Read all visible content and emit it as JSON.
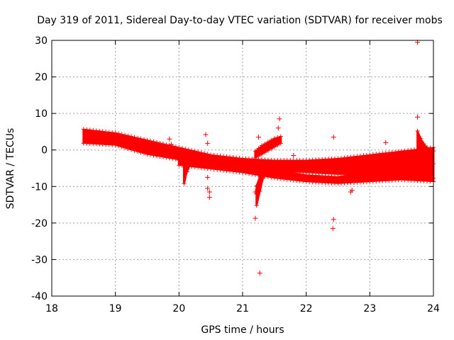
{
  "chart_data": {
    "type": "scatter",
    "title": "Day 319 of 2011, Sidereal Day-to-day VTEC variation (SDTVAR) for receiver mobs",
    "xlabel": "GPS time / hours",
    "ylabel": "SDTVAR / TECUs",
    "xlim": [
      18,
      24
    ],
    "ylim": [
      -40,
      30
    ],
    "xticks": [
      18,
      19,
      20,
      21,
      22,
      23,
      24
    ],
    "yticks": [
      -40,
      -30,
      -20,
      -10,
      0,
      10,
      20,
      30
    ],
    "xtick_labels": [
      "18",
      "19",
      "20",
      "21",
      "22",
      "23",
      "24"
    ],
    "ytick_labels": [
      "-40",
      "-30",
      "-20",
      "-10",
      "0",
      "10",
      "20",
      "30"
    ],
    "grid": true,
    "marker": "+",
    "color": "#ff0000",
    "bands": [
      {
        "name": "upper-track",
        "x": [
          18.5,
          19.0,
          19.5,
          20.0,
          20.5,
          21.0,
          21.5,
          22.0,
          22.5,
          23.0,
          23.5,
          24.0
        ],
        "y_top": [
          5.5,
          4.5,
          2.5,
          0.5,
          -1.5,
          -2.5,
          -3.0,
          -3.0,
          -2.5,
          -1.5,
          -0.5,
          0.5
        ],
        "y_bottom": [
          2.0,
          1.5,
          -1.0,
          -2.5,
          -4.0,
          -5.0,
          -5.5,
          -6.0,
          -6.5,
          -6.5,
          -7.0,
          -7.5
        ]
      },
      {
        "name": "lower-track",
        "x": [
          20.0,
          20.5,
          21.0,
          21.5,
          22.0,
          22.5,
          23.0,
          23.5,
          24.0
        ],
        "y_top": [
          -3.0,
          -3.5,
          -4.0,
          -5.5,
          -7.0,
          -7.5,
          -6.0,
          -5.0,
          -4.0
        ],
        "y_bottom": [
          -4.0,
          -5.0,
          -6.0,
          -7.5,
          -8.5,
          -9.0,
          -8.5,
          -8.0,
          -8.5
        ]
      },
      {
        "name": "rising-arc",
        "x": [
          21.2,
          21.3,
          21.4,
          21.5,
          21.6
        ],
        "y_top": [
          -0.5,
          1.0,
          2.0,
          3.0,
          3.5
        ],
        "y_bottom": [
          -2.0,
          -1.0,
          0.0,
          1.0,
          2.0
        ]
      },
      {
        "name": "descending-arc",
        "x": [
          21.22,
          21.26,
          21.3,
          21.34,
          21.4
        ],
        "y_top": [
          -10.0,
          -8.0,
          -6.0,
          -4.5,
          -3.0
        ],
        "y_bottom": [
          -15.0,
          -12.0,
          -9.0,
          -6.5,
          -4.5
        ]
      },
      {
        "name": "end-spike",
        "x": [
          23.75,
          23.8,
          23.85,
          23.9,
          23.95,
          24.0
        ],
        "y_top": [
          5.0,
          3.0,
          1.5,
          0.5,
          0.0,
          -0.5
        ],
        "y_bottom": [
          -2.0,
          -4.0,
          -6.0,
          -7.0,
          -8.0,
          -8.5
        ]
      },
      {
        "name": "drop-20",
        "x": [
          20.08,
          20.1,
          20.12,
          20.15
        ],
        "y_top": [
          -3.0,
          -3.0,
          -3.5,
          -4.0
        ],
        "y_bottom": [
          -9.0,
          -7.5,
          -6.0,
          -5.0
        ]
      }
    ],
    "outliers": [
      {
        "x": 23.75,
        "y": 29.5
      },
      {
        "x": 23.75,
        "y": 9.0
      },
      {
        "x": 21.58,
        "y": 8.5
      },
      {
        "x": 21.56,
        "y": 6.0
      },
      {
        "x": 20.42,
        "y": 4.2
      },
      {
        "x": 22.43,
        "y": 3.5
      },
      {
        "x": 21.25,
        "y": 3.5
      },
      {
        "x": 19.85,
        "y": 3.0
      },
      {
        "x": 19.88,
        "y": 1.5
      },
      {
        "x": 23.25,
        "y": 2.0
      },
      {
        "x": 20.45,
        "y": 1.8
      },
      {
        "x": 21.8,
        "y": -1.5
      },
      {
        "x": 20.45,
        "y": -7.5
      },
      {
        "x": 20.45,
        "y": -10.5
      },
      {
        "x": 20.48,
        "y": -11.5
      },
      {
        "x": 20.48,
        "y": -13.0
      },
      {
        "x": 21.2,
        "y": -11.5
      },
      {
        "x": 21.22,
        "y": -12.0
      },
      {
        "x": 21.2,
        "y": -18.7
      },
      {
        "x": 22.43,
        "y": -19.0
      },
      {
        "x": 22.42,
        "y": -21.5
      },
      {
        "x": 21.27,
        "y": -33.7
      },
      {
        "x": 22.7,
        "y": -11.5
      },
      {
        "x": 22.72,
        "y": -11.0
      }
    ]
  }
}
